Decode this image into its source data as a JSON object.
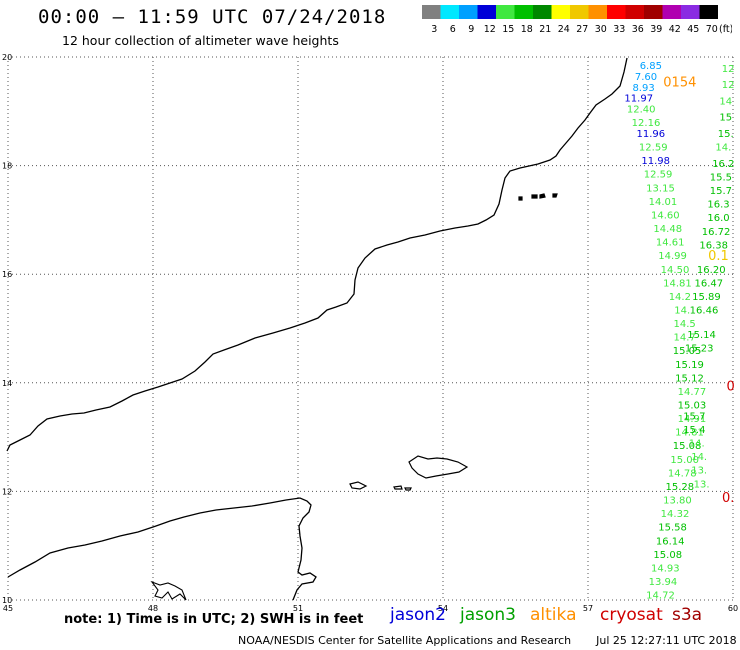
{
  "header": {
    "title": "00:00 – 11:59 UTC 07/24/2018",
    "subtitle": "12 hour collection of altimeter wave heights"
  },
  "color_scale": {
    "unit": "(ft)",
    "bins": [
      {
        "label": "3",
        "color": "#808080"
      },
      {
        "label": "6",
        "color": "#00e8ff"
      },
      {
        "label": "9",
        "color": "#00a0ff"
      },
      {
        "label": "12",
        "color": "#0000d8"
      },
      {
        "label": "15",
        "color": "#40e840"
      },
      {
        "label": "18",
        "color": "#00c000"
      },
      {
        "label": "21",
        "color": "#008800"
      },
      {
        "label": "24",
        "color": "#ffff00"
      },
      {
        "label": "27",
        "color": "#f0c800"
      },
      {
        "label": "30",
        "color": "#ff9000"
      },
      {
        "label": "33",
        "color": "#ff0000"
      },
      {
        "label": "36",
        "color": "#d00000"
      },
      {
        "label": "39",
        "color": "#a00000"
      },
      {
        "label": "42",
        "color": "#b000b0"
      },
      {
        "label": "45",
        "color": "#8a2be2"
      },
      {
        "label": "70",
        "color": "#000000"
      }
    ]
  },
  "chart_data": {
    "type": "map",
    "lon_range": [
      45,
      60
    ],
    "lat_range": [
      10,
      20
    ],
    "lon_ticks": [
      "45",
      "48",
      "51",
      "54",
      "57",
      "60"
    ],
    "lat_ticks": [
      "20",
      "18",
      "16",
      "14",
      "12",
      "10"
    ],
    "grid": true,
    "tracks": [
      {
        "points": [
          {
            "lat": 19.85,
            "lon": 58.3,
            "value": "6.85",
            "color": "#00a0ff"
          },
          {
            "lat": 19.65,
            "lon": 58.2,
            "value": "7.60",
            "color": "#00a0ff"
          },
          {
            "lat": 19.45,
            "lon": 58.15,
            "value": "8.93",
            "color": "#00a0ff"
          },
          {
            "lat": 19.25,
            "lon": 58.05,
            "value": "11.97",
            "color": "#0000d8"
          },
          {
            "lat": 19.05,
            "lon": 58.1,
            "value": "12.40",
            "color": "#40e840"
          },
          {
            "lat": 18.8,
            "lon": 58.2,
            "value": "12.16",
            "color": "#40e840"
          },
          {
            "lat": 18.6,
            "lon": 58.3,
            "value": "11.96",
            "color": "#0000d8"
          },
          {
            "lat": 18.35,
            "lon": 58.35,
            "value": "12.59",
            "color": "#40e840"
          },
          {
            "lat": 18.1,
            "lon": 58.4,
            "value": "11.98",
            "color": "#0000d8"
          },
          {
            "lat": 17.85,
            "lon": 58.45,
            "value": "12.59",
            "color": "#40e840"
          },
          {
            "lat": 17.6,
            "lon": 58.5,
            "value": "13.15",
            "color": "#40e840"
          },
          {
            "lat": 17.35,
            "lon": 58.55,
            "value": "14.01",
            "color": "#40e840"
          },
          {
            "lat": 17.1,
            "lon": 58.6,
            "value": "14.60",
            "color": "#40e840"
          },
          {
            "lat": 16.85,
            "lon": 58.65,
            "value": "14.48",
            "color": "#40e840"
          },
          {
            "lat": 16.6,
            "lon": 58.7,
            "value": "14.61",
            "color": "#40e840"
          },
          {
            "lat": 16.35,
            "lon": 58.75,
            "value": "14.99",
            "color": "#40e840"
          },
          {
            "lat": 16.1,
            "lon": 58.8,
            "value": "14.50",
            "color": "#40e840"
          },
          {
            "lat": 15.85,
            "lon": 58.85,
            "value": "14.81",
            "color": "#40e840"
          },
          {
            "lat": 15.6,
            "lon": 58.9,
            "value": "14.2",
            "color": "#40e840"
          },
          {
            "lat": 15.35,
            "lon": 58.95,
            "value": "14.",
            "color": "#40e840"
          },
          {
            "lat": 15.1,
            "lon": 59.0,
            "value": "14.5",
            "color": "#40e840"
          },
          {
            "lat": 14.85,
            "lon": 59.0,
            "value": "14.7",
            "color": "#40e840"
          },
          {
            "lat": 14.6,
            "lon": 59.05,
            "value": "15.05",
            "color": "#00c000"
          },
          {
            "lat": 14.35,
            "lon": 59.1,
            "value": "15.19",
            "color": "#00c000"
          },
          {
            "lat": 14.1,
            "lon": 59.1,
            "value": "15.12",
            "color": "#00c000"
          },
          {
            "lat": 13.85,
            "lon": 59.15,
            "value": "14.77",
            "color": "#40e840"
          },
          {
            "lat": 13.6,
            "lon": 59.15,
            "value": "15.03",
            "color": "#00c000"
          },
          {
            "lat": 13.35,
            "lon": 59.15,
            "value": "14.91",
            "color": "#40e840"
          },
          {
            "lat": 13.1,
            "lon": 59.1,
            "value": "14.81",
            "color": "#40e840"
          },
          {
            "lat": 12.85,
            "lon": 59.05,
            "value": "15.08",
            "color": "#00c000"
          },
          {
            "lat": 12.6,
            "lon": 59.0,
            "value": "15.00",
            "color": "#40e840"
          },
          {
            "lat": 12.35,
            "lon": 58.95,
            "value": "14.78",
            "color": "#40e840"
          },
          {
            "lat": 12.1,
            "lon": 58.9,
            "value": "15.28",
            "color": "#00c000"
          },
          {
            "lat": 11.85,
            "lon": 58.85,
            "value": "13.80",
            "color": "#40e840"
          },
          {
            "lat": 11.6,
            "lon": 58.8,
            "value": "14.32",
            "color": "#40e840"
          },
          {
            "lat": 11.35,
            "lon": 58.75,
            "value": "15.58",
            "color": "#00c000"
          },
          {
            "lat": 11.1,
            "lon": 58.7,
            "value": "16.14",
            "color": "#00c000"
          },
          {
            "lat": 10.85,
            "lon": 58.65,
            "value": "15.08",
            "color": "#00c000"
          },
          {
            "lat": 10.6,
            "lon": 58.6,
            "value": "14.93",
            "color": "#40e840"
          },
          {
            "lat": 10.35,
            "lon": 58.55,
            "value": "13.94",
            "color": "#40e840"
          },
          {
            "lat": 10.1,
            "lon": 58.5,
            "value": "14.72",
            "color": "#40e840"
          }
        ]
      },
      {
        "points": [
          {
            "lat": 19.8,
            "lon": 59.9,
            "value": "12",
            "color": "#40e840"
          },
          {
            "lat": 19.5,
            "lon": 59.9,
            "value": "12",
            "color": "#40e840"
          },
          {
            "lat": 19.2,
            "lon": 59.85,
            "value": "14",
            "color": "#40e840"
          },
          {
            "lat": 18.9,
            "lon": 59.85,
            "value": "15",
            "color": "#00c000"
          },
          {
            "lat": 18.6,
            "lon": 59.85,
            "value": "15.",
            "color": "#00c000"
          },
          {
            "lat": 18.35,
            "lon": 59.8,
            "value": "14.",
            "color": "#40e840"
          },
          {
            "lat": 18.05,
            "lon": 59.8,
            "value": "16.2",
            "color": "#00c000"
          },
          {
            "lat": 17.8,
            "lon": 59.75,
            "value": "15.5",
            "color": "#00c000"
          },
          {
            "lat": 17.55,
            "lon": 59.75,
            "value": "15.7",
            "color": "#00c000"
          },
          {
            "lat": 17.3,
            "lon": 59.7,
            "value": "16.3",
            "color": "#00c000"
          },
          {
            "lat": 17.05,
            "lon": 59.7,
            "value": "16.0",
            "color": "#00c000"
          },
          {
            "lat": 16.8,
            "lon": 59.65,
            "value": "16.72",
            "color": "#00c000"
          },
          {
            "lat": 16.55,
            "lon": 59.6,
            "value": "16.38",
            "color": "#00c000"
          },
          {
            "lat": 16.1,
            "lon": 59.55,
            "value": "16.20",
            "color": "#00c000"
          },
          {
            "lat": 15.85,
            "lon": 59.5,
            "value": "16.47",
            "color": "#00c000"
          },
          {
            "lat": 15.6,
            "lon": 59.45,
            "value": "15.89",
            "color": "#00c000"
          },
          {
            "lat": 15.35,
            "lon": 59.4,
            "value": "16.46",
            "color": "#00c000"
          },
          {
            "lat": 14.9,
            "lon": 59.35,
            "value": "15.14",
            "color": "#00c000"
          },
          {
            "lat": 14.65,
            "lon": 59.3,
            "value": "15.23",
            "color": "#00c000"
          },
          {
            "lat": 13.4,
            "lon": 59.2,
            "value": "15.7",
            "color": "#00c000"
          },
          {
            "lat": 13.15,
            "lon": 59.2,
            "value": "15.4",
            "color": "#00c000"
          },
          {
            "lat": 12.9,
            "lon": 59.25,
            "value": "14.",
            "color": "#40e840"
          },
          {
            "lat": 12.65,
            "lon": 59.3,
            "value": "14.",
            "color": "#40e840"
          },
          {
            "lat": 12.4,
            "lon": 59.3,
            "value": "13.",
            "color": "#40e840"
          },
          {
            "lat": 12.15,
            "lon": 59.35,
            "value": "13.",
            "color": "#40e840"
          }
        ]
      }
    ],
    "extra_labels": [
      {
        "lat": 19.55,
        "lon": 58.9,
        "value": "0154",
        "color": "#ff9000"
      },
      {
        "lat": 16.35,
        "lon": 59.7,
        "value": "0.1",
        "color": "#f0c800"
      },
      {
        "lat": 13.95,
        "lon": 59.95,
        "value": "0",
        "color": "#d00000"
      },
      {
        "lat": 11.9,
        "lon": 59.9,
        "value": "0.",
        "color": "#d00000"
      }
    ]
  },
  "legend_note": "note: 1) Time is in UTC; 2) SWH is in feet",
  "satellites": [
    {
      "name": "jason2",
      "color": "#0000d8"
    },
    {
      "name": "jason3",
      "color": "#00a000"
    },
    {
      "name": "altika",
      "color": "#ff9000"
    },
    {
      "name": "cryosat",
      "color": "#d00000"
    },
    {
      "name": "s3a",
      "color": "#a00000"
    }
  ],
  "footer": {
    "credit": "NOAA/NESDIS Center for Satellite Applications and Research",
    "timestamp": "Jul 25 12:27:11 UTC 2018"
  }
}
